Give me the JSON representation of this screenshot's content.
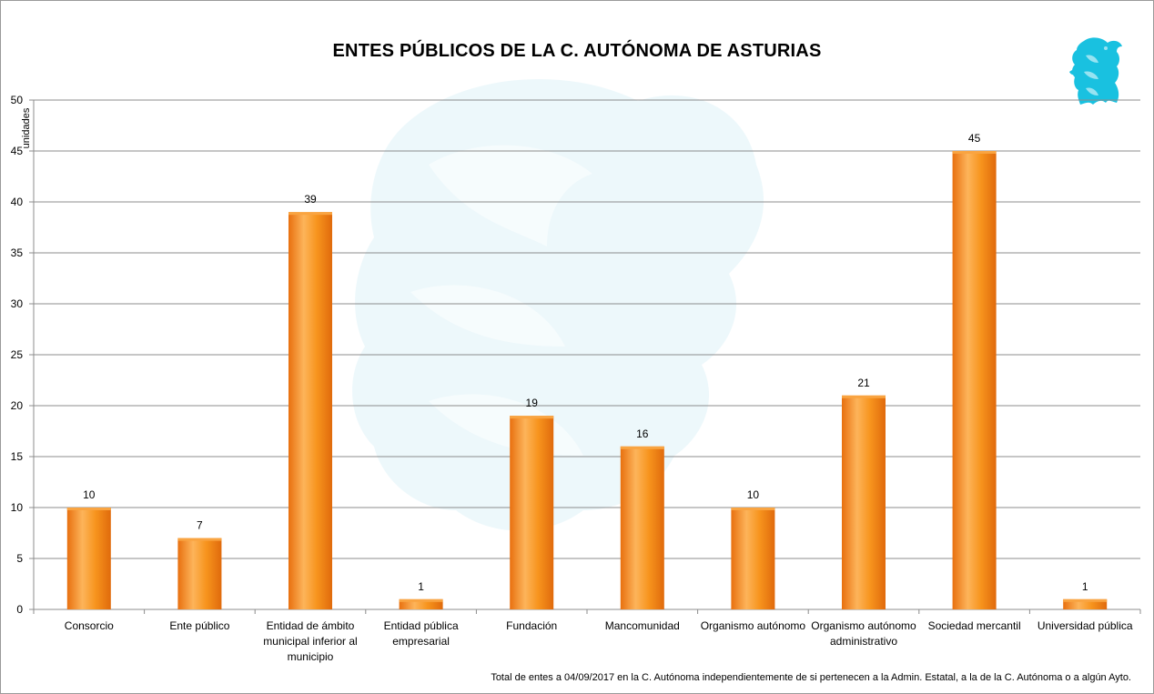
{
  "chart_data": {
    "type": "bar",
    "title": "ENTES PÚBLICOS DE LA C. AUTÓNOMA DE ASTURIAS",
    "ylabel": "unidades",
    "xlabel": "",
    "ylim": [
      0,
      50
    ],
    "yticks": [
      0,
      5,
      10,
      15,
      20,
      25,
      30,
      35,
      40,
      45,
      50
    ],
    "grid": true,
    "legend": "none",
    "categories": [
      [
        "Consorcio"
      ],
      [
        "Ente público"
      ],
      [
        "Entidad de ámbito",
        "municipal inferior al",
        "municipio"
      ],
      [
        "Entidad pública",
        "empresarial"
      ],
      [
        "Fundación"
      ],
      [
        "Mancomunidad"
      ],
      [
        "Organismo autónomo"
      ],
      [
        "Organismo autónomo",
        "administrativo"
      ],
      [
        "Sociedad mercantil"
      ],
      [
        "Universidad pública"
      ]
    ],
    "values": [
      10,
      7,
      39,
      1,
      19,
      16,
      10,
      21,
      45,
      1
    ],
    "bar_color": "#f7941d",
    "bar_color_light": "#fdb45a",
    "bar_color_dark": "#e8700f",
    "watermark_color": "#dff2f8"
  },
  "footnote": "Total de entes a 04/09/2017 en la C. Autónoma independientemente de si pertenecen a la Admin. Estatal, a la de la C. Autónoma o a algún Ayto.",
  "logo": {
    "icon": "griffin-logo-icon",
    "color": "#19c1e0"
  }
}
